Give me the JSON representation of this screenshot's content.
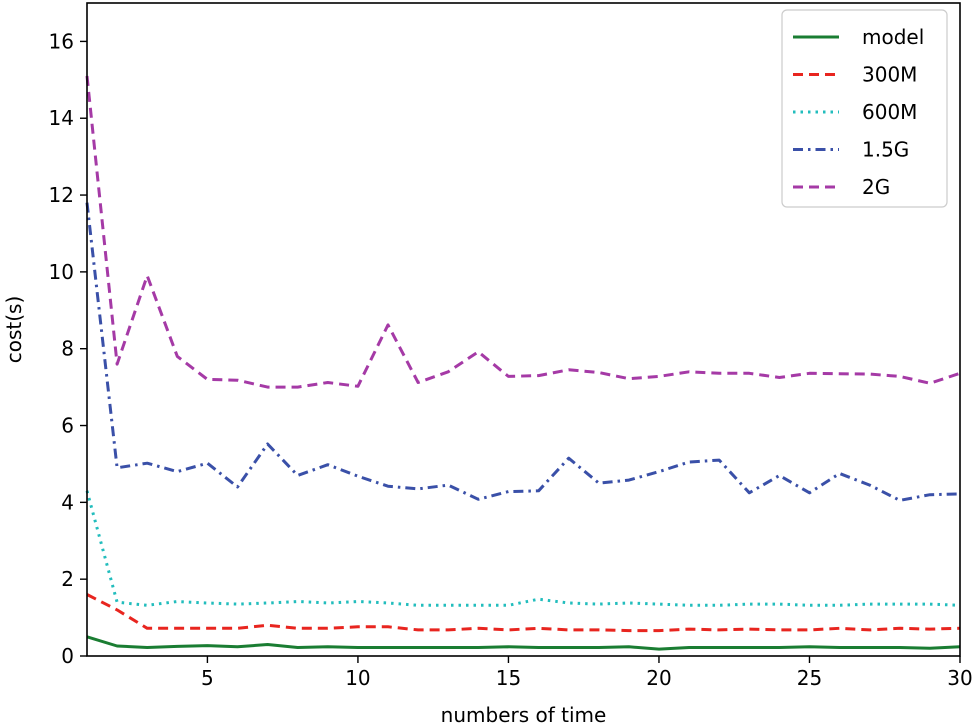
{
  "chart_data": {
    "type": "line",
    "title": "",
    "xlabel": "numbers of time",
    "ylabel": "cost(s)",
    "xlim": [
      1,
      30
    ],
    "ylim": [
      0,
      17
    ],
    "xticks": [
      5,
      10,
      15,
      20,
      25,
      30
    ],
    "yticks": [
      0,
      2,
      4,
      6,
      8,
      10,
      12,
      14,
      16
    ],
    "legend_position": "top-right",
    "x": [
      1,
      2,
      3,
      4,
      5,
      6,
      7,
      8,
      9,
      10,
      11,
      12,
      13,
      14,
      15,
      16,
      17,
      18,
      19,
      20,
      21,
      22,
      23,
      24,
      25,
      26,
      27,
      28,
      29,
      30
    ],
    "series": [
      {
        "name": "model",
        "color": "#1a7d32",
        "style": "solid",
        "values": [
          0.5,
          0.26,
          0.22,
          0.25,
          0.27,
          0.24,
          0.3,
          0.22,
          0.24,
          0.22,
          0.22,
          0.22,
          0.22,
          0.22,
          0.24,
          0.22,
          0.22,
          0.22,
          0.24,
          0.18,
          0.22,
          0.22,
          0.22,
          0.22,
          0.24,
          0.22,
          0.22,
          0.22,
          0.2,
          0.24
        ]
      },
      {
        "name": "300M",
        "color": "#e8251f",
        "style": "dashed",
        "values": [
          1.6,
          1.2,
          0.72,
          0.72,
          0.72,
          0.72,
          0.8,
          0.72,
          0.72,
          0.76,
          0.76,
          0.68,
          0.68,
          0.72,
          0.68,
          0.72,
          0.68,
          0.68,
          0.66,
          0.66,
          0.7,
          0.68,
          0.7,
          0.68,
          0.68,
          0.72,
          0.68,
          0.72,
          0.7,
          0.72
        ]
      },
      {
        "name": "600M",
        "color": "#22bdbd",
        "style": "dotted",
        "values": [
          4.3,
          1.4,
          1.32,
          1.42,
          1.38,
          1.35,
          1.38,
          1.42,
          1.38,
          1.42,
          1.38,
          1.32,
          1.32,
          1.32,
          1.32,
          1.48,
          1.38,
          1.35,
          1.38,
          1.35,
          1.32,
          1.32,
          1.35,
          1.35,
          1.32,
          1.32,
          1.35,
          1.35,
          1.35,
          1.32
        ]
      },
      {
        "name": "1.5G",
        "color": "#3a50a8",
        "style": "dashdot",
        "values": [
          11.8,
          4.9,
          5.02,
          4.8,
          5.02,
          4.4,
          5.52,
          4.7,
          4.98,
          4.68,
          4.42,
          4.35,
          4.45,
          4.08,
          4.28,
          4.3,
          5.15,
          4.5,
          4.58,
          4.8,
          5.05,
          5.1,
          4.25,
          4.7,
          4.25,
          4.75,
          4.45,
          4.05,
          4.2,
          4.22
        ]
      },
      {
        "name": "2G",
        "color": "#a53aa6",
        "style": "dashed",
        "values": [
          15.1,
          7.6,
          9.9,
          7.8,
          7.2,
          7.18,
          7.0,
          7.0,
          7.12,
          7.02,
          8.62,
          7.12,
          7.4,
          7.92,
          7.28,
          7.3,
          7.45,
          7.38,
          7.22,
          7.28,
          7.4,
          7.36,
          7.36,
          7.25,
          7.36,
          7.35,
          7.34,
          7.28,
          7.1,
          7.36
        ]
      }
    ]
  }
}
